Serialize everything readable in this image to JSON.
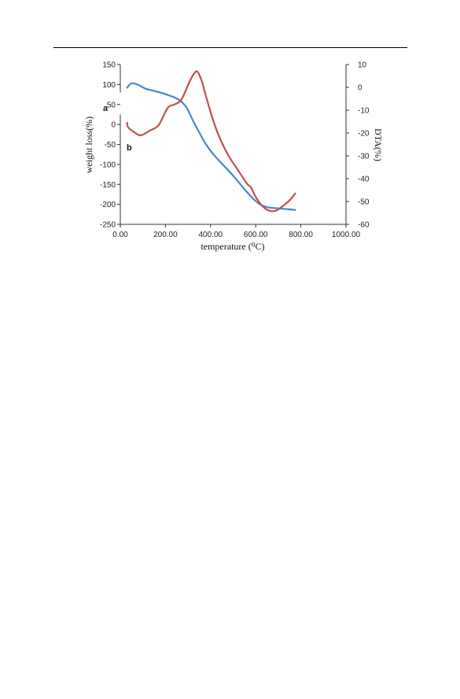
{
  "chart_data": {
    "type": "line",
    "xlabel": "temperature (⁰C)",
    "ylabel_left": "weight loss(%)",
    "ylabel_right": "DTA(%)",
    "x_ticks": [
      "0.00",
      "200.00",
      "400.00",
      "600.00",
      "800.00",
      "1000.00"
    ],
    "y_left_ticks": [
      "150",
      "100",
      "50",
      "0",
      "-50",
      "-100",
      "-150",
      "-200",
      "-250"
    ],
    "y_right_ticks": [
      "10",
      "0",
      "-10",
      "-20",
      "-30",
      "-40",
      "-50",
      "-60"
    ],
    "xlim": [
      0,
      1000
    ],
    "ylim_left": [
      -250,
      150
    ],
    "ylim_right": [
      -60,
      10
    ],
    "annotations": [
      "a",
      "b"
    ],
    "series": [
      {
        "label": "a",
        "axis": "left",
        "color": "#4a86c5",
        "x": [
          30,
          50,
          80,
          110,
          150,
          200,
          250,
          280,
          300,
          320,
          350,
          380,
          410,
          450,
          500,
          550,
          600,
          630,
          660,
          700,
          740,
          775
        ],
        "y": [
          92,
          103,
          99,
          90,
          84,
          76,
          65,
          52,
          36,
          12,
          -20,
          -50,
          -73,
          -98,
          -128,
          -162,
          -192,
          -203,
          -208,
          -210,
          -212,
          -214
        ]
      },
      {
        "label": "b",
        "axis": "right",
        "color": "#c0504d",
        "x": [
          30,
          35,
          60,
          90,
          130,
          170,
          210,
          240,
          270,
          300,
          320,
          340,
          360,
          380,
          410,
          440,
          480,
          520,
          560,
          580,
          600,
          630,
          660,
          690,
          720,
          750,
          775
        ],
        "y": [
          -15.5,
          -17.5,
          -19.5,
          -21,
          -19,
          -16.5,
          -9,
          -7.5,
          -5.5,
          1,
          5,
          7,
          3,
          -4,
          -14,
          -22,
          -30,
          -36,
          -42,
          -44,
          -48,
          -52,
          -54,
          -54,
          -52,
          -49.5,
          -46.5
        ]
      }
    ]
  }
}
